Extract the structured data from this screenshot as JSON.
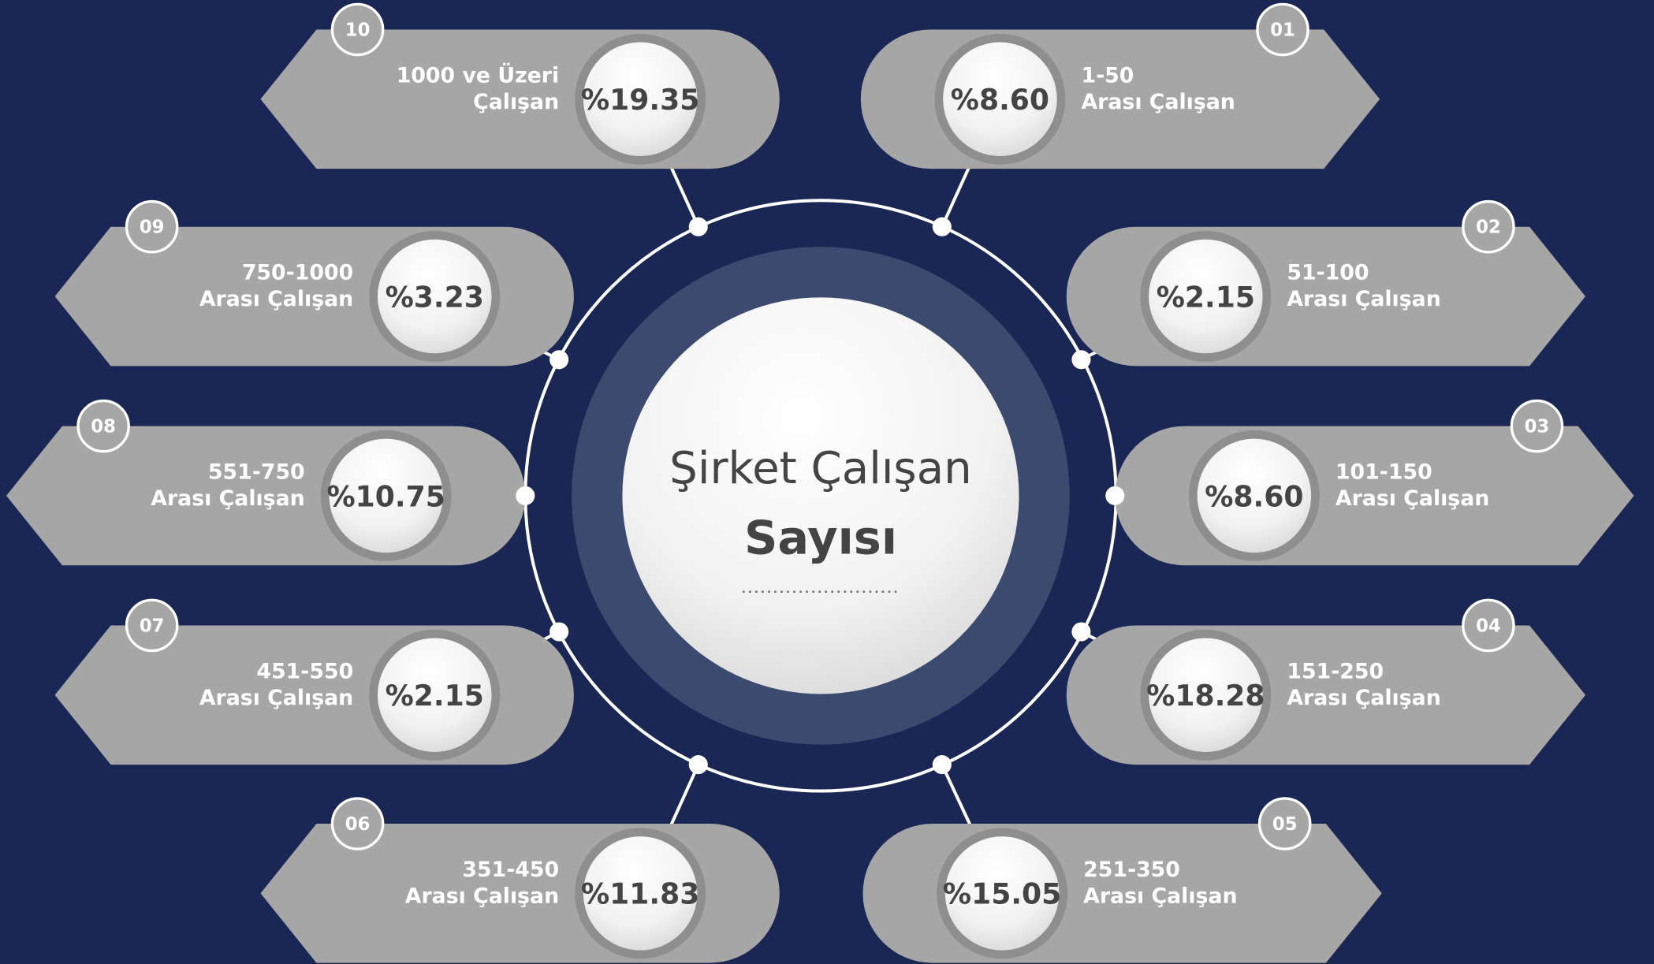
{
  "title": [
    "Şirket Çalışan",
    "Sayısı"
  ],
  "items": [
    {
      "number": "01",
      "percent": "%8.60",
      "label": [
        "1-50",
        "Arası Çalışan"
      ]
    },
    {
      "number": "02",
      "percent": "%2.15",
      "label": [
        "51-100",
        "Arası Çalışan"
      ]
    },
    {
      "number": "03",
      "percent": "%8.60",
      "label": [
        "101-150",
        "Arası Çalışan"
      ]
    },
    {
      "number": "04",
      "percent": "%18.28",
      "label": [
        "151-250",
        "Arası Çalışan"
      ]
    },
    {
      "number": "05",
      "percent": "%15.05",
      "label": [
        "251-350",
        "Arası Çalışan"
      ]
    },
    {
      "number": "06",
      "percent": "%11.83",
      "label": [
        "351-450",
        "Arası Çalışan"
      ]
    },
    {
      "number": "07",
      "percent": "%2.15",
      "label": [
        "451-550",
        "Arası Çalışan"
      ]
    },
    {
      "number": "08",
      "percent": "%10.75",
      "label": [
        "551-750",
        "Arası Çalışan"
      ]
    },
    {
      "number": "09",
      "percent": "%3.23",
      "label": [
        "750-1000",
        "Arası Çalışan"
      ]
    },
    {
      "number": "10",
      "percent": "%19.35",
      "label": [
        "1000 ve Üzeri",
        "Çalışan"
      ]
    }
  ]
}
